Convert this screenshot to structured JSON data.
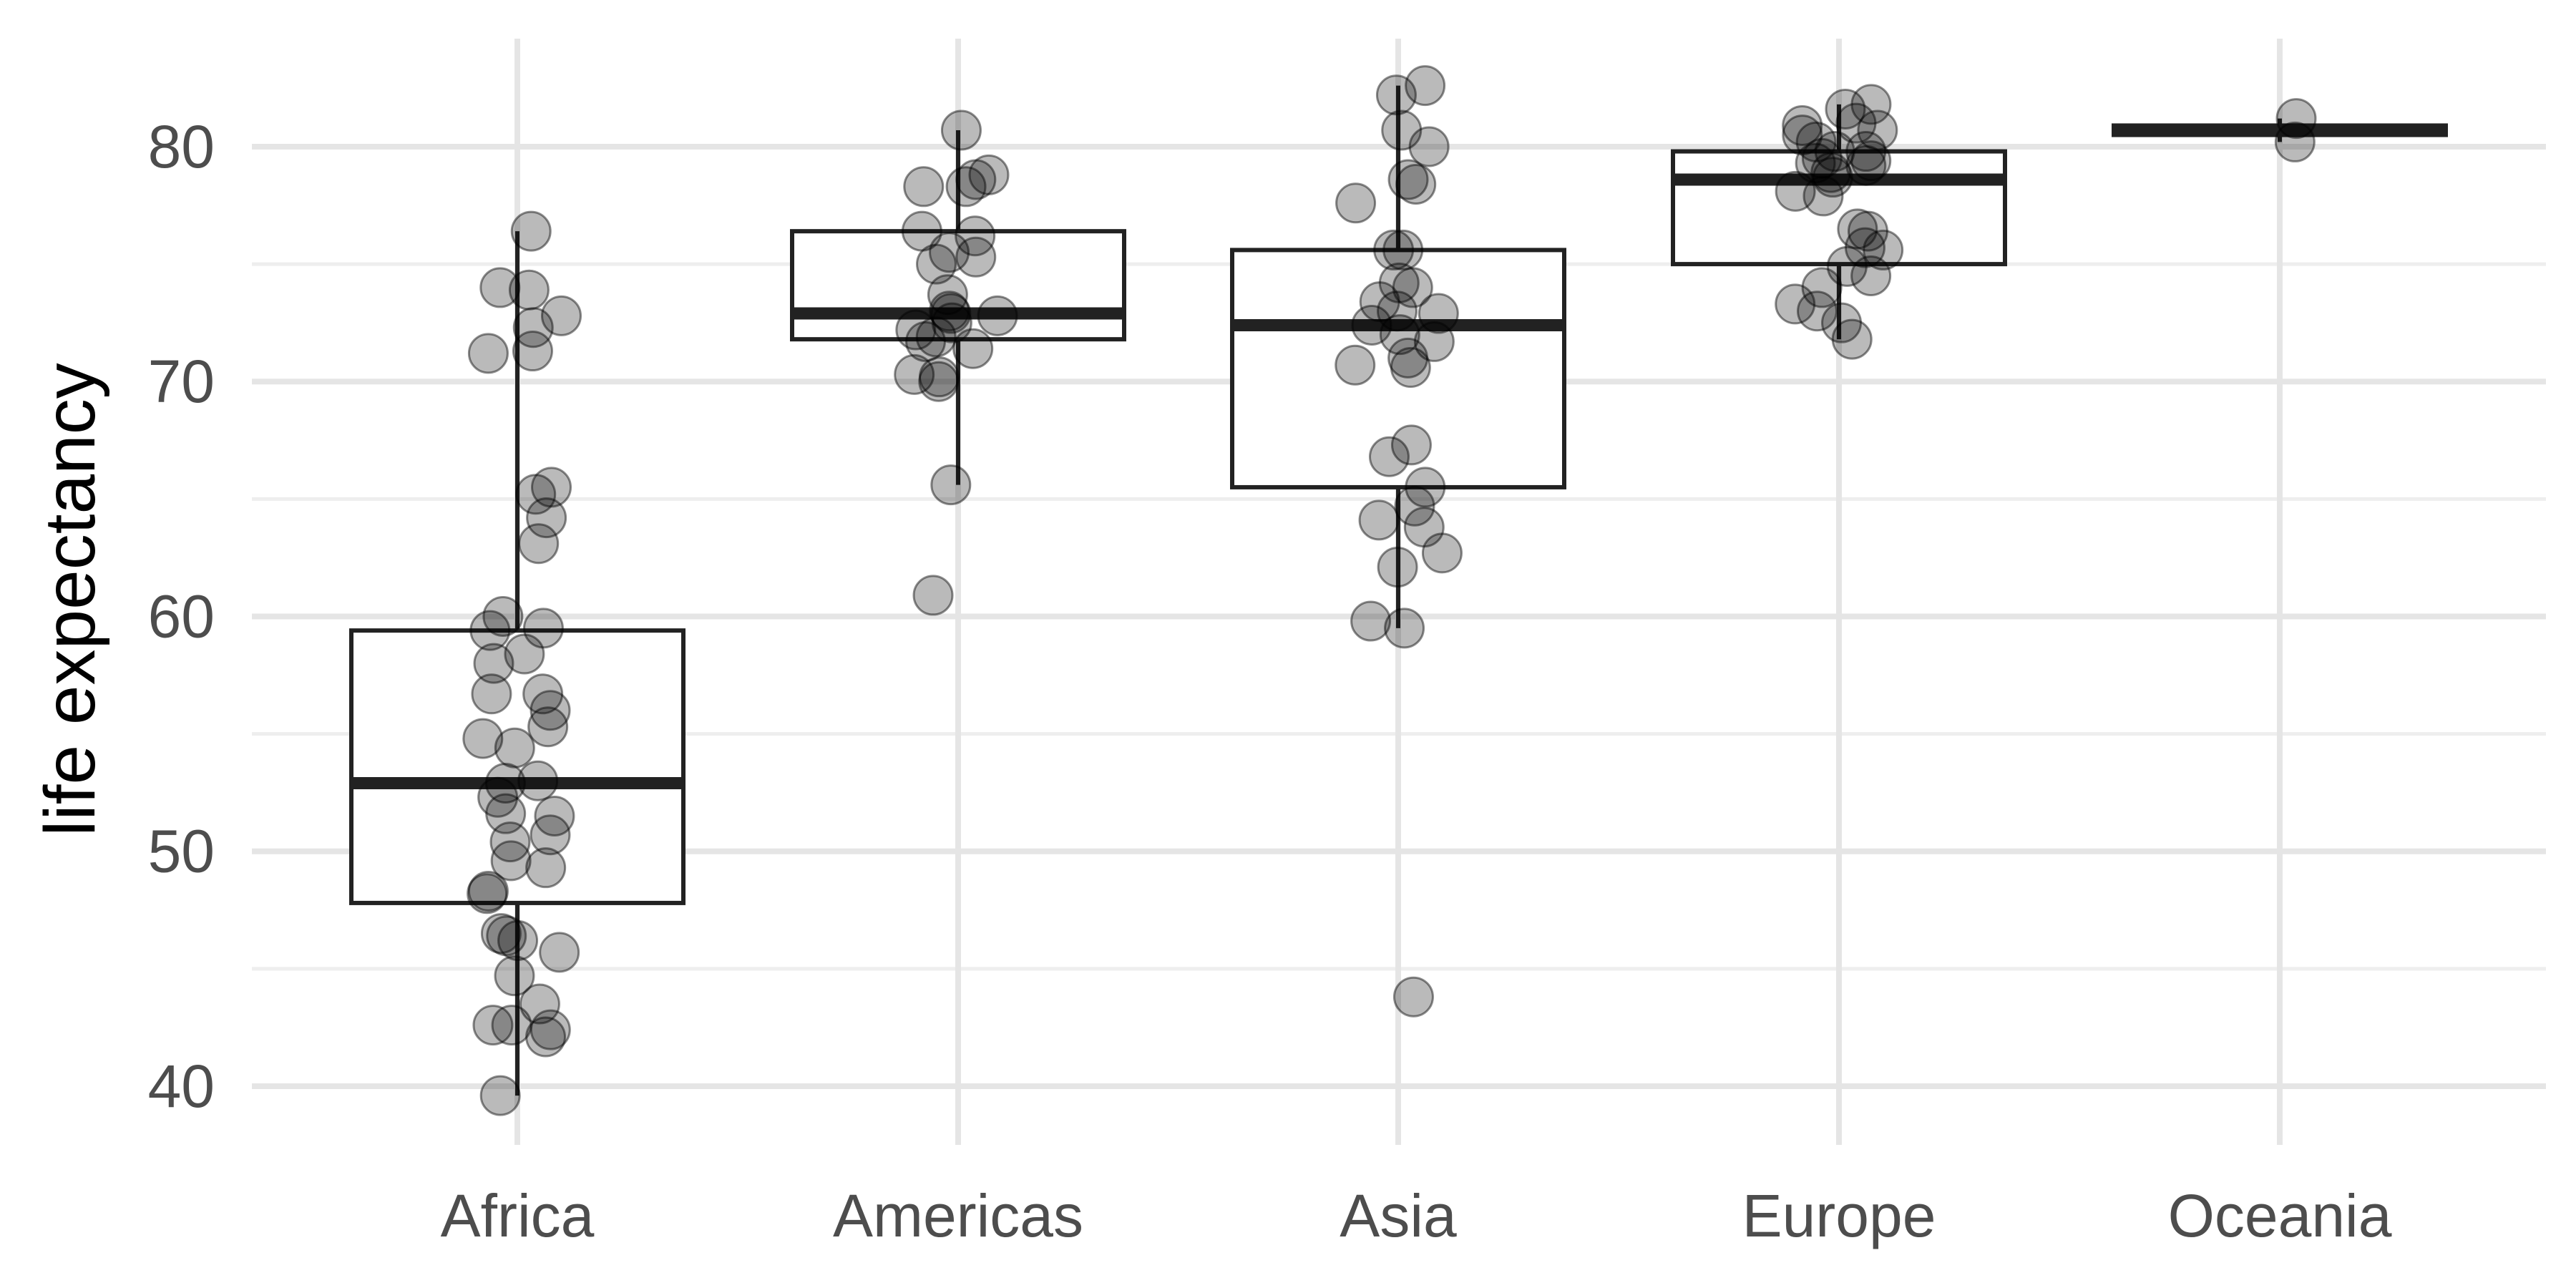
{
  "chart_data": {
    "type": "boxplot",
    "title": "",
    "xlabel": "",
    "ylabel": "life expectancy",
    "categories": [
      "Africa",
      "Americas",
      "Asia",
      "Europe",
      "Oceania"
    ],
    "ylim": [
      37.5,
      84.6
    ],
    "yticks": [
      {
        "value": 40,
        "label": "40"
      },
      {
        "value": 50,
        "label": "50"
      },
      {
        "value": 60,
        "label": "60"
      },
      {
        "value": 70,
        "label": "70"
      },
      {
        "value": 80,
        "label": "80"
      }
    ],
    "grid": true,
    "legend": "none",
    "boxes": [
      {
        "category": "Africa",
        "q1": 47.8,
        "median": 52.9,
        "q3": 59.4,
        "whisker_low": 39.6,
        "whisker_high": 76.4
      },
      {
        "category": "Americas",
        "q1": 71.8,
        "median": 72.9,
        "q3": 76.4,
        "whisker_low": 65.6,
        "whisker_high": 80.7
      },
      {
        "category": "Asia",
        "q1": 65.5,
        "median": 72.4,
        "q3": 75.6,
        "whisker_low": 59.5,
        "whisker_high": 82.6
      },
      {
        "category": "Europe",
        "q1": 75.0,
        "median": 78.6,
        "q3": 79.8,
        "whisker_low": 71.8,
        "whisker_high": 81.8
      },
      {
        "category": "Oceania",
        "q1": 80.5,
        "median": 80.7,
        "q3": 80.9,
        "whisker_low": 80.2,
        "whisker_high": 81.2
      }
    ],
    "points": [
      {
        "category": "Africa",
        "values": [
          76.4,
          74.0,
          73.9,
          72.8,
          72.3,
          71.3,
          71.2,
          65.5,
          65.2,
          64.2,
          63.1,
          60.0,
          59.5,
          59.4,
          58.4,
          58.0,
          56.7,
          56.7,
          56.0,
          55.3,
          54.8,
          54.4,
          53.0,
          52.9,
          52.3,
          51.6,
          51.5,
          50.7,
          50.4,
          49.6,
          49.3,
          48.3,
          48.2,
          46.5,
          46.4,
          46.2,
          45.7,
          44.7,
          43.5,
          42.6,
          42.6,
          42.4,
          42.1,
          39.6
        ]
      },
      {
        "category": "Americas",
        "values": [
          80.7,
          78.8,
          78.6,
          78.3,
          78.3,
          76.4,
          76.2,
          75.5,
          75.3,
          75.0,
          73.7,
          73.0,
          72.9,
          72.8,
          72.5,
          72.2,
          71.9,
          71.7,
          71.4,
          70.3,
          70.2,
          70.0,
          65.6,
          60.9
        ]
      },
      {
        "category": "Asia",
        "values": [
          82.6,
          82.2,
          80.7,
          80.0,
          78.6,
          78.4,
          77.6,
          75.6,
          75.6,
          74.2,
          74.0,
          73.4,
          73.0,
          72.9,
          72.4,
          72.0,
          71.7,
          71.0,
          70.7,
          70.6,
          67.3,
          66.8,
          65.5,
          64.7,
          64.1,
          63.8,
          62.7,
          62.1,
          59.8,
          59.5,
          43.8
        ]
      },
      {
        "category": "Europe",
        "values": [
          81.8,
          81.6,
          81.0,
          80.9,
          80.7,
          80.5,
          80.2,
          79.8,
          79.8,
          79.5,
          79.4,
          79.3,
          79.2,
          78.9,
          78.7,
          78.1,
          77.9,
          76.5,
          76.4,
          75.7,
          75.6,
          74.9,
          74.5,
          74.0,
          73.3,
          73.0,
          72.5,
          71.8
        ]
      },
      {
        "category": "Oceania",
        "values": [
          81.2,
          80.2
        ]
      }
    ]
  }
}
